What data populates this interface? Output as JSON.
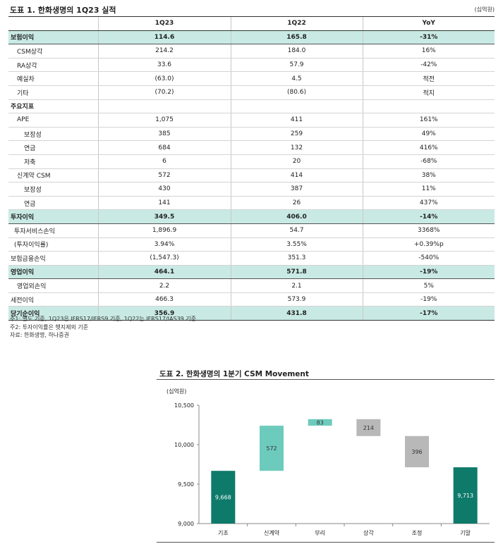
{
  "table1": {
    "title": "도표 1. 한화생명의 1Q23 실적",
    "unit": "(십억원)",
    "columns": [
      "",
      "1Q23",
      "1Q22",
      "YoY"
    ],
    "rows": [
      {
        "label": "보험이익",
        "q23": "114.6",
        "q22": "165.8",
        "yoy": "-31%"
      },
      {
        "label": "CSM상각",
        "q23": "214.2",
        "q22": "184.0",
        "yoy": "16%"
      },
      {
        "label": "RA상각",
        "q23": "33.6",
        "q22": "57.9",
        "yoy": "-42%"
      },
      {
        "label": "예실차",
        "q23": "(63.0)",
        "q22": "4.5",
        "yoy": "적전"
      },
      {
        "label": "기타",
        "q23": "(70.2)",
        "q22": "(80.6)",
        "yoy": "적지"
      },
      {
        "label": "주요지표",
        "q23": "",
        "q22": "",
        "yoy": ""
      },
      {
        "label": "APE",
        "q23": "1,075",
        "q22": "411",
        "yoy": "161%"
      },
      {
        "label": "보장성",
        "q23": "385",
        "q22": "259",
        "yoy": "49%"
      },
      {
        "label": "연금",
        "q23": "684",
        "q22": "132",
        "yoy": "416%"
      },
      {
        "label": "저축",
        "q23": "6",
        "q22": "20",
        "yoy": "-68%"
      },
      {
        "label": "신계약 CSM",
        "q23": "572",
        "q22": "414",
        "yoy": "38%"
      },
      {
        "label": "보장성",
        "q23": "430",
        "q22": "387",
        "yoy": "11%"
      },
      {
        "label": "연금",
        "q23": "141",
        "q22": "26",
        "yoy": "437%"
      },
      {
        "label": "투자이익",
        "q23": "349.5",
        "q22": "406.0",
        "yoy": "-14%"
      },
      {
        "label": "투자서비스손익",
        "q23": "1,896.9",
        "q22": "54.7",
        "yoy": "3368%"
      },
      {
        "label": "(투자이익률)",
        "q23": "3.94%",
        "q22": "3.55%",
        "yoy": "+0.39%p"
      },
      {
        "label": "보험금융손익",
        "q23": "(1,547.3)",
        "q22": "351.3",
        "yoy": "-540%"
      },
      {
        "label": "영업이익",
        "q23": "464.1",
        "q22": "571.8",
        "yoy": "-19%"
      },
      {
        "label": "영업외손익",
        "q23": "2.2",
        "q22": "2.1",
        "yoy": "5%"
      },
      {
        "label": "세전이익",
        "q23": "466.3",
        "q22": "573.9",
        "yoy": "-19%"
      },
      {
        "label": "당기순이익",
        "q23": "356.9",
        "q22": "431.8",
        "yoy": "-17%"
      }
    ],
    "notes": [
      "주1: 별도 기준, 1Q23은 IFRS17/IFRS9 기준, 1Q22는 IFRS17/IAS39 기준",
      "주2: 투자이익률은 헷지제외 기준",
      "자료: 한화생명, 하나증권"
    ]
  },
  "chart2": {
    "title": "도표 2. 한화생명의 1분기 CSM Movement",
    "unit": "(십억원)"
  },
  "chart_data": {
    "type": "bar",
    "subtype": "waterfall",
    "categories": [
      "기초",
      "신계약",
      "부리",
      "상각",
      "조정",
      "기말"
    ],
    "values": [
      9668,
      572,
      83,
      214,
      396,
      9713
    ],
    "bar_ranges": [
      [
        9000,
        9668
      ],
      [
        9668,
        10240
      ],
      [
        10240,
        10323
      ],
      [
        10109,
        10323
      ],
      [
        9713,
        10109
      ],
      [
        9000,
        9713
      ]
    ],
    "value_labels": [
      "9,668",
      "572",
      "83",
      "214",
      "396",
      "9,713"
    ],
    "colors": [
      "#0d7a6a",
      "#6dcbbd",
      "#6dcbbd",
      "#b8b8b8",
      "#b8b8b8",
      "#0d7a6a"
    ],
    "label_colors": [
      "#ffffff",
      "#333333",
      "#333333",
      "#333333",
      "#333333",
      "#ffffff"
    ],
    "ylim": [
      9000,
      10500
    ],
    "yticks": [
      9000,
      9500,
      10000,
      10500
    ],
    "ytick_labels": [
      "9,000",
      "9,500",
      "10,000",
      "10,500"
    ],
    "ylabel": "(십억원)",
    "title": "도표 2. 한화생명의 1분기 CSM Movement",
    "grid": false,
    "legend": "none"
  }
}
